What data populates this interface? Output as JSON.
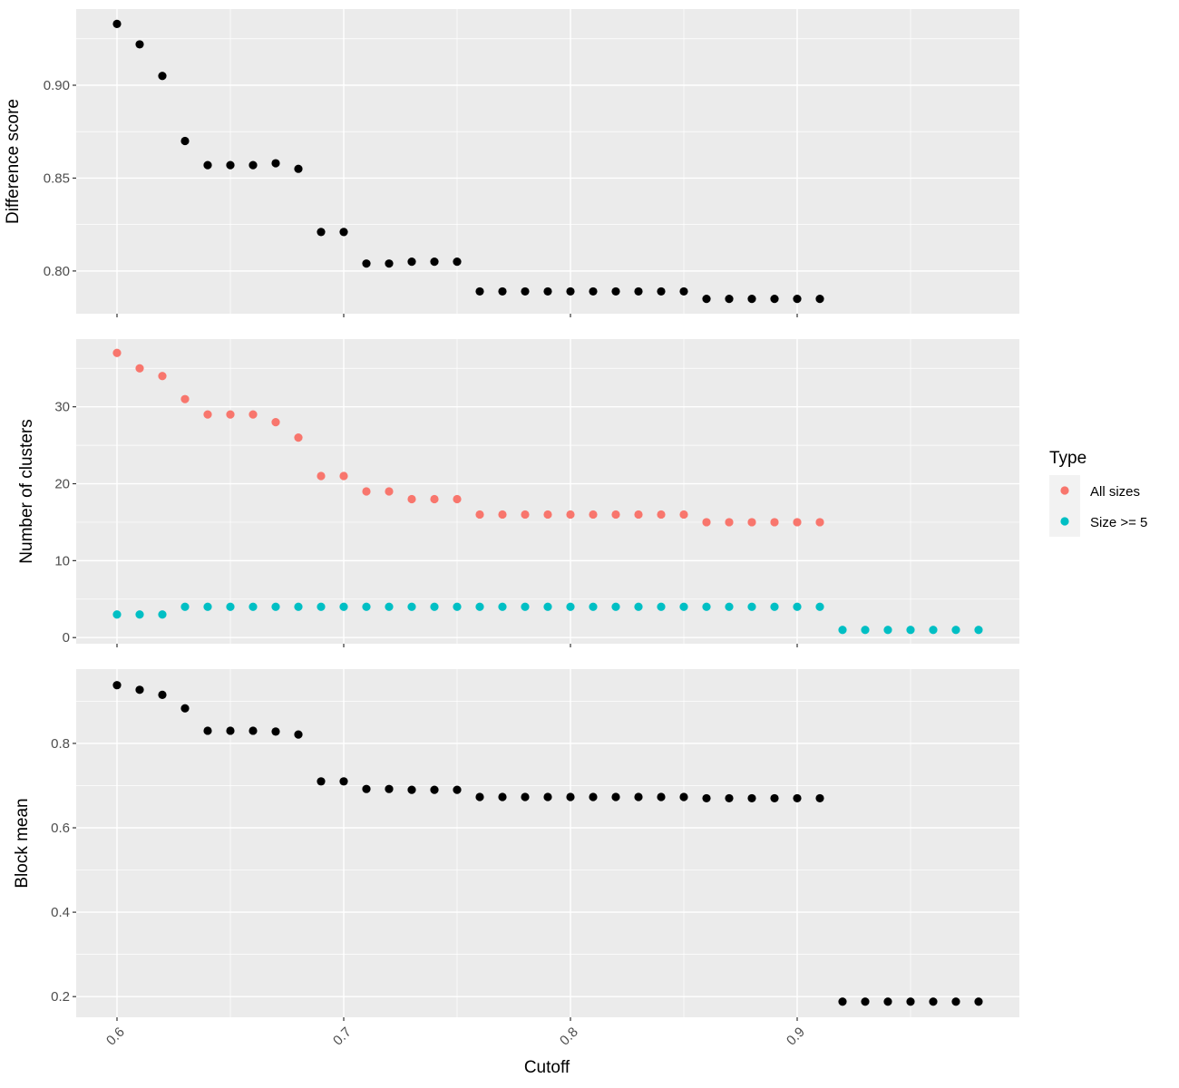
{
  "chart_data": {
    "type": "scatter",
    "xlabel": "Cutoff",
    "x_ticks": [
      0.6,
      0.7,
      0.8,
      0.9
    ],
    "x_tick_labels": [
      "0.6",
      "0.7",
      "0.8",
      "0.9"
    ],
    "xlim": [
      0.582,
      0.998
    ],
    "grid": true,
    "panels": [
      {
        "id": "difference",
        "ylabel": "Difference score",
        "ylim": [
          0.777,
          0.941
        ],
        "y_ticks": [
          0.8,
          0.85,
          0.9
        ],
        "y_tick_labels": [
          "0.80",
          "0.85",
          "0.90"
        ],
        "series": [
          {
            "color": "#000000",
            "x": [
              0.6,
              0.61,
              0.62,
              0.63,
              0.64,
              0.65,
              0.66,
              0.67,
              0.68,
              0.69,
              0.7,
              0.71,
              0.72,
              0.73,
              0.74,
              0.75,
              0.76,
              0.77,
              0.78,
              0.79,
              0.8,
              0.81,
              0.82,
              0.83,
              0.84,
              0.85,
              0.86,
              0.87,
              0.88,
              0.89,
              0.9,
              0.91
            ],
            "y": [
              0.933,
              0.922,
              0.905,
              0.87,
              0.857,
              0.857,
              0.857,
              0.858,
              0.855,
              0.821,
              0.821,
              0.804,
              0.804,
              0.805,
              0.805,
              0.805,
              0.789,
              0.789,
              0.789,
              0.789,
              0.789,
              0.789,
              0.789,
              0.789,
              0.789,
              0.789,
              0.785,
              0.785,
              0.785,
              0.785,
              0.785,
              0.785
            ]
          }
        ]
      },
      {
        "id": "clusters",
        "ylabel": "Number of clusters",
        "ylim": [
          -0.8,
          38.8
        ],
        "y_ticks": [
          0,
          10,
          20,
          30
        ],
        "y_tick_labels": [
          "0",
          "10",
          "20",
          "30"
        ],
        "series": [
          {
            "name": "All sizes",
            "color": "#F8766D",
            "x": [
              0.6,
              0.61,
              0.62,
              0.63,
              0.64,
              0.65,
              0.66,
              0.67,
              0.68,
              0.69,
              0.7,
              0.71,
              0.72,
              0.73,
              0.74,
              0.75,
              0.76,
              0.77,
              0.78,
              0.79,
              0.8,
              0.81,
              0.82,
              0.83,
              0.84,
              0.85,
              0.86,
              0.87,
              0.88,
              0.89,
              0.9,
              0.91
            ],
            "y": [
              37,
              35,
              34,
              31,
              29,
              29,
              29,
              28,
              26,
              21,
              21,
              19,
              19,
              18,
              18,
              18,
              16,
              16,
              16,
              16,
              16,
              16,
              16,
              16,
              16,
              16,
              15,
              15,
              15,
              15,
              15,
              15
            ]
          },
          {
            "name": "Size >= 5",
            "color": "#00BFC4",
            "x": [
              0.6,
              0.61,
              0.62,
              0.63,
              0.64,
              0.65,
              0.66,
              0.67,
              0.68,
              0.69,
              0.7,
              0.71,
              0.72,
              0.73,
              0.74,
              0.75,
              0.76,
              0.77,
              0.78,
              0.79,
              0.8,
              0.81,
              0.82,
              0.83,
              0.84,
              0.85,
              0.86,
              0.87,
              0.88,
              0.89,
              0.9,
              0.91,
              0.92,
              0.93,
              0.94,
              0.95,
              0.96,
              0.97,
              0.98
            ],
            "y": [
              3,
              3,
              3,
              4,
              4,
              4,
              4,
              4,
              4,
              4,
              4,
              4,
              4,
              4,
              4,
              4,
              4,
              4,
              4,
              4,
              4,
              4,
              4,
              4,
              4,
              4,
              4,
              4,
              4,
              4,
              4,
              4,
              1,
              1,
              1,
              1,
              1,
              1,
              1
            ]
          }
        ]
      },
      {
        "id": "blockmean",
        "ylabel": "Block mean",
        "ylim": [
          0.151,
          0.976
        ],
        "y_ticks": [
          0.2,
          0.4,
          0.6,
          0.8
        ],
        "y_tick_labels": [
          "0.2",
          "0.4",
          "0.6",
          "0.8"
        ],
        "series": [
          {
            "color": "#000000",
            "x": [
              0.6,
              0.61,
              0.62,
              0.63,
              0.64,
              0.65,
              0.66,
              0.67,
              0.68,
              0.69,
              0.7,
              0.71,
              0.72,
              0.73,
              0.74,
              0.75,
              0.76,
              0.77,
              0.78,
              0.79,
              0.8,
              0.81,
              0.82,
              0.83,
              0.84,
              0.85,
              0.86,
              0.87,
              0.88,
              0.89,
              0.9,
              0.91,
              0.92,
              0.93,
              0.94,
              0.95,
              0.96,
              0.97,
              0.98
            ],
            "y": [
              0.938,
              0.927,
              0.915,
              0.883,
              0.83,
              0.83,
              0.83,
              0.828,
              0.821,
              0.71,
              0.71,
              0.692,
              0.692,
              0.69,
              0.69,
              0.69,
              0.673,
              0.673,
              0.673,
              0.673,
              0.673,
              0.673,
              0.673,
              0.673,
              0.673,
              0.673,
              0.67,
              0.67,
              0.67,
              0.67,
              0.67,
              0.67,
              0.188,
              0.188,
              0.188,
              0.188,
              0.188,
              0.188,
              0.188
            ]
          }
        ]
      }
    ],
    "legend": {
      "title": "Type",
      "placement": "right",
      "entries": [
        {
          "label": "All sizes",
          "color": "#F8766D"
        },
        {
          "label": "Size >= 5",
          "color": "#00BFC4"
        }
      ]
    }
  }
}
